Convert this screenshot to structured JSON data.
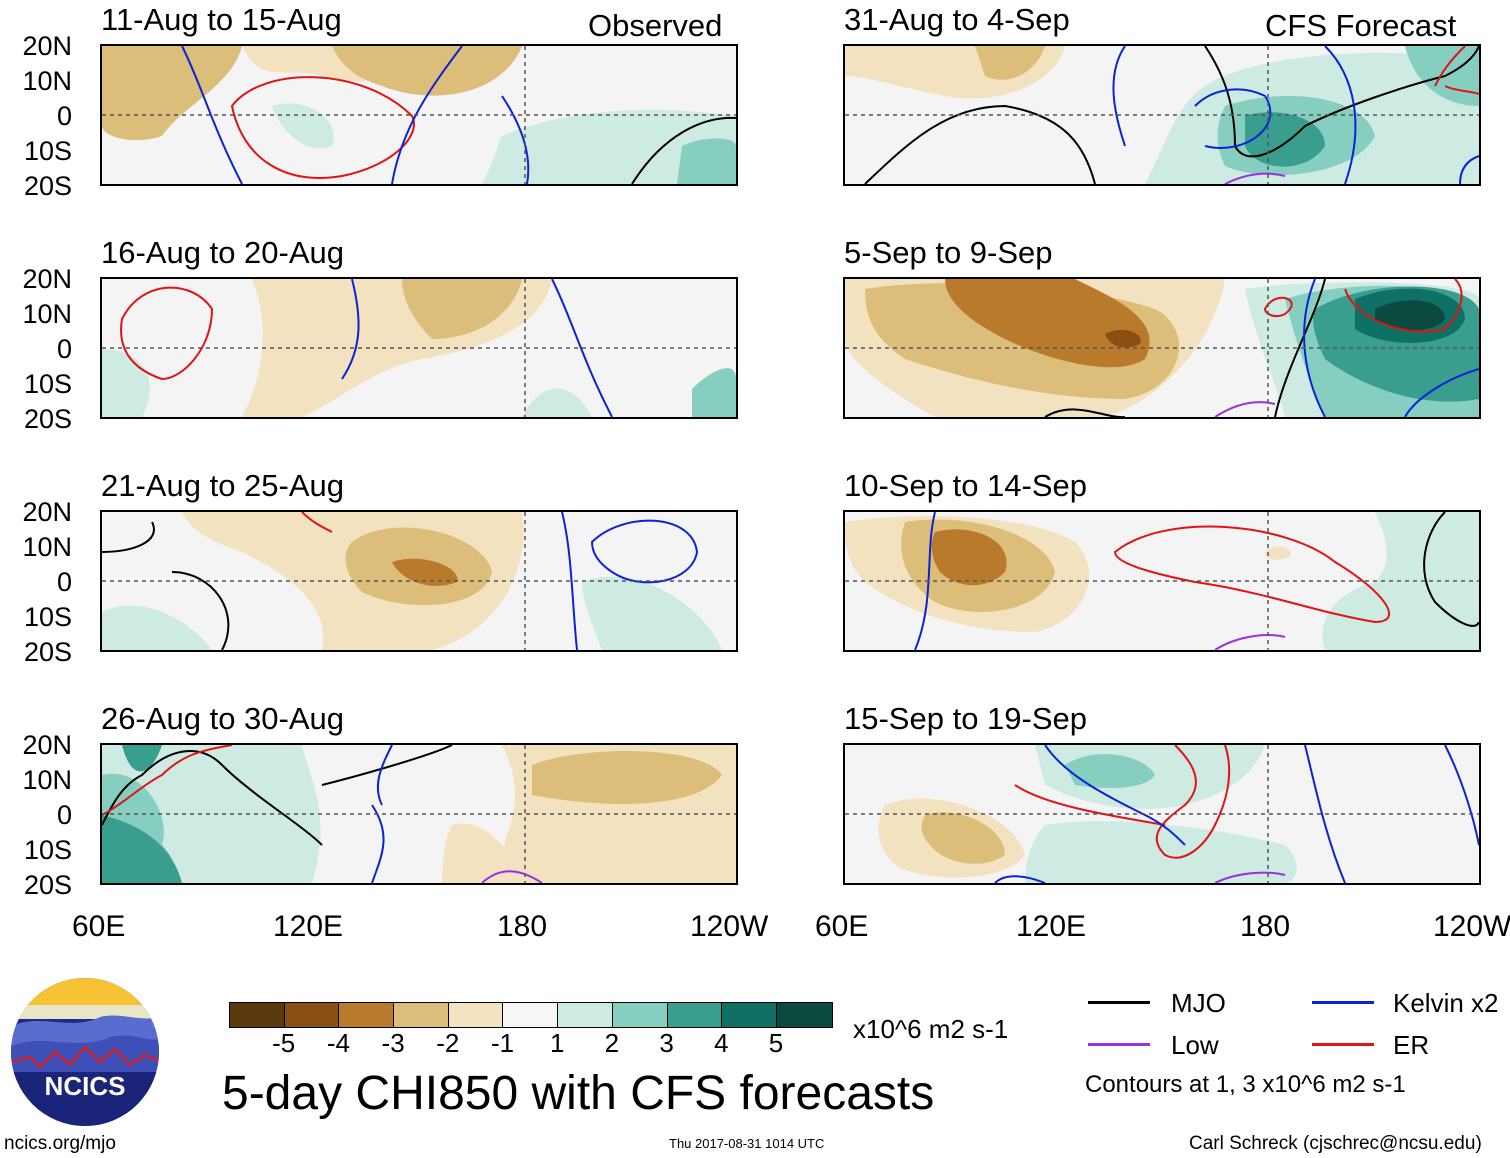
{
  "panels": [
    {
      "title": "11-Aug to 15-Aug",
      "tag": "Observed"
    },
    {
      "title": "16-Aug to 20-Aug",
      "tag": ""
    },
    {
      "title": "21-Aug to 25-Aug",
      "tag": ""
    },
    {
      "title": "26-Aug to 30-Aug",
      "tag": ""
    },
    {
      "title": "31-Aug to 4-Sep",
      "tag": "CFS Forecast"
    },
    {
      "title": "5-Sep to 9-Sep",
      "tag": ""
    },
    {
      "title": "10-Sep to 14-Sep",
      "tag": ""
    },
    {
      "title": "15-Sep to 19-Sep",
      "tag": ""
    }
  ],
  "lat_labels": [
    "20N",
    "10N",
    "0",
    "10S",
    "20S"
  ],
  "lon_labels": [
    "60E",
    "120E",
    "180",
    "120W"
  ],
  "colorbar": {
    "colors": [
      "#5a3a0c",
      "#8a4f12",
      "#b97a2c",
      "#dcbd7a",
      "#f3e2c0",
      "#f6f6f6",
      "#cdeae3",
      "#86cfc0",
      "#3a9e8f",
      "#0f7166",
      "#0a4a3f"
    ],
    "ticks": [
      "-5",
      "-4",
      "-3",
      "-2",
      "-1",
      "1",
      "2",
      "3",
      "4",
      "5"
    ],
    "units": "x10^6 m2 s-1"
  },
  "main_title": "5-day CHI850 with CFS forecasts",
  "legend": [
    {
      "label": "MJO",
      "color": "#000000"
    },
    {
      "label": "Kelvin x2",
      "color": "#0a23d6"
    },
    {
      "label": "Low",
      "color": "#9b30e0"
    },
    {
      "label": "ER",
      "color": "#e01414"
    }
  ],
  "contour_note": "Contours at 1, 3 x10^6 m2 s-1",
  "logo_text": "NCICS",
  "footer": {
    "left": "ncics.org/mjo",
    "center": "Thu 2017-08-31 1014 UTC",
    "right": "Carl Schreck (cjschrec@ncsu.edu)"
  },
  "chart_data": {
    "type": "heatmap",
    "title": "5-day CHI850 with CFS forecasts",
    "variable": "CHI850 anomaly",
    "units": "x10^6 m2 s-1",
    "lon_ticks": [
      "60E",
      "120E",
      "180",
      "120W"
    ],
    "lat_ticks": [
      "20N",
      "10N",
      "0",
      "10S",
      "20S"
    ],
    "lat_range": [
      -20,
      20
    ],
    "lon_range": [
      60,
      240
    ],
    "color_levels": [
      -5,
      -4,
      -3,
      -2,
      -1,
      1,
      2,
      3,
      4,
      5
    ],
    "contour_levels": [
      1,
      3
    ],
    "series": [
      {
        "name": "MJO",
        "color": "#000000"
      },
      {
        "name": "Kelvin x2",
        "color": "#0a23d6"
      },
      {
        "name": "Low",
        "color": "#9b30e0"
      },
      {
        "name": "ER",
        "color": "#e01414"
      }
    ],
    "panels_observed": [
      "11-Aug to 15-Aug",
      "16-Aug to 20-Aug",
      "21-Aug to 25-Aug",
      "26-Aug to 30-Aug"
    ],
    "panels_forecast": [
      "31-Aug to 4-Sep",
      "5-Sep to 9-Sep",
      "10-Sep to 14-Sep",
      "15-Sep to 19-Sep"
    ]
  }
}
